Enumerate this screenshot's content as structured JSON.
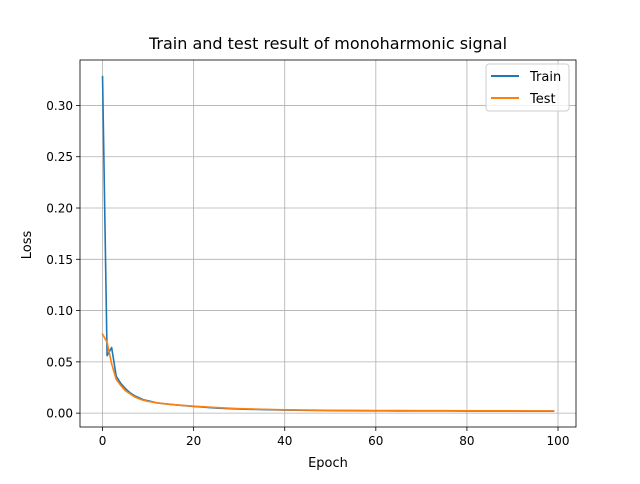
{
  "chart_data": {
    "type": "line",
    "title": "Train and test result of monoharmonic signal",
    "xlabel": "Epoch",
    "ylabel": "Loss",
    "xlim": [
      -4.95,
      103.95
    ],
    "ylim": [
      -0.0135,
      0.3443
    ],
    "xticks": [
      0,
      20,
      40,
      60,
      80,
      100
    ],
    "yticks": [
      0.0,
      0.05,
      0.1,
      0.15,
      0.2,
      0.25,
      0.3
    ],
    "xtick_labels": [
      "0",
      "20",
      "40",
      "60",
      "80",
      "100"
    ],
    "ytick_labels": [
      "0.00",
      "0.05",
      "0.10",
      "0.15",
      "0.20",
      "0.25",
      "0.30"
    ],
    "grid": true,
    "legend": "top-right",
    "series": [
      {
        "name": "Train",
        "color": "#1f77b4",
        "x": [
          0,
          1,
          2,
          3,
          4,
          5,
          6,
          7,
          8,
          9,
          10,
          12,
          15,
          20,
          25,
          30,
          35,
          40,
          45,
          50,
          55,
          60,
          65,
          70,
          75,
          80,
          85,
          90,
          95,
          99
        ],
        "y": [
          0.328,
          0.056,
          0.064,
          0.036,
          0.029,
          0.024,
          0.02,
          0.017,
          0.015,
          0.013,
          0.012,
          0.01,
          0.0085,
          0.0065,
          0.005,
          0.004,
          0.0035,
          0.003,
          0.0027,
          0.0025,
          0.0024,
          0.0023,
          0.0022,
          0.0021,
          0.0021,
          0.002,
          0.002,
          0.002,
          0.0019,
          0.0019
        ]
      },
      {
        "name": "Test",
        "color": "#ff7f0e",
        "x": [
          0,
          1,
          2,
          3,
          4,
          5,
          6,
          7,
          8,
          9,
          10,
          12,
          15,
          20,
          25,
          30,
          35,
          40,
          45,
          50,
          55,
          60,
          65,
          70,
          75,
          80,
          85,
          90,
          95,
          99
        ],
        "y": [
          0.077,
          0.069,
          0.048,
          0.033,
          0.027,
          0.022,
          0.019,
          0.016,
          0.014,
          0.0125,
          0.0115,
          0.01,
          0.0085,
          0.0068,
          0.0054,
          0.0044,
          0.0038,
          0.0033,
          0.003,
          0.0028,
          0.0027,
          0.0026,
          0.0025,
          0.0024,
          0.0024,
          0.0023,
          0.0023,
          0.0023,
          0.0022,
          0.0022
        ]
      }
    ]
  }
}
